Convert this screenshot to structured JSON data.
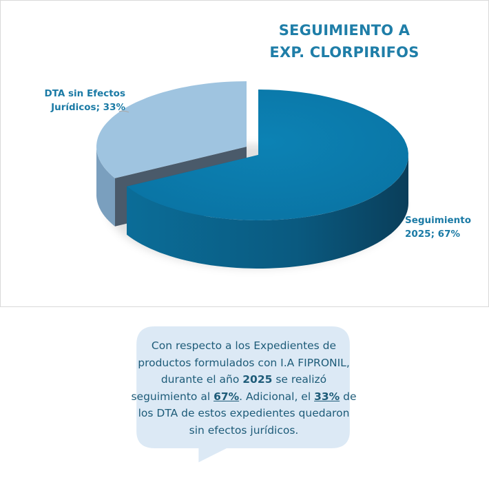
{
  "chart_data": {
    "type": "pie",
    "style": "3d-exploded",
    "title": "SEGUIMIENTO A EXP. CLORPIRIFOS",
    "slices": [
      {
        "name": "Seguimiento 2025",
        "value": 67,
        "label_line1": "Seguimiento",
        "label_line2": "2025; 67%",
        "color": "#0b7cad"
      },
      {
        "name": "DTA sin Efectos Jurídicos",
        "value": 33,
        "label_line1": "DTA sin Efectos",
        "label_line2": "Jurídicos; 33%",
        "color": "#9fc4e0"
      }
    ]
  },
  "title_line1": "SEGUIMIENTO A",
  "title_line2": "EXP. CLORPIRIFOS",
  "callout": {
    "t1": "Con respecto a los Expedientes de productos formulados con I.A FIPRONIL, durante el año ",
    "b1": "2025",
    "t2": " se realizó seguimiento al ",
    "u1": "67%",
    "t3": ". Adicional, el ",
    "u2": "33%",
    "t4": " de los DTA de estos expedientes quedaron sin efectos jurídicos.",
    "bg_color": "#dce9f5"
  }
}
